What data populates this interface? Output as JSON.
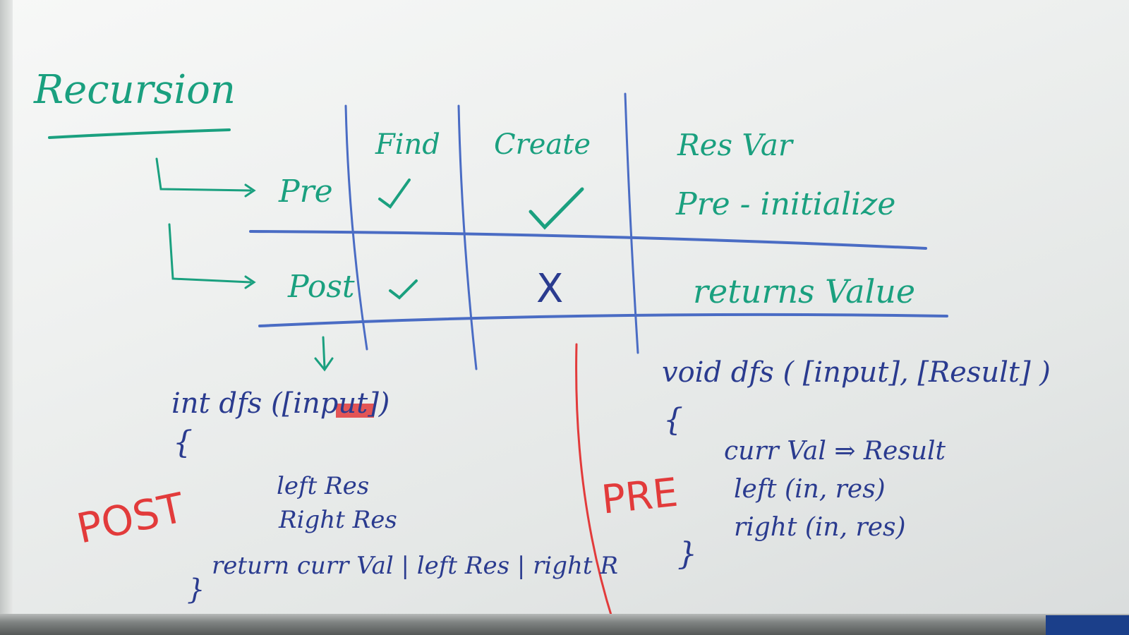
{
  "title": "Recursion",
  "table": {
    "columns": [
      "Find",
      "Create",
      "Res Var"
    ],
    "rows": [
      {
        "label": "Pre",
        "find": "✓",
        "create": "✓",
        "res_var": "Pre - initialize"
      },
      {
        "label": "Post",
        "find": "✓",
        "create": "X",
        "res_var": "returns Value"
      }
    ]
  },
  "post_code": {
    "tag": "POST",
    "signature": "int dfs ([input])",
    "open_brace": "{",
    "lines": [
      "left Res",
      "Right Res",
      "return curr Val | left Res | right R"
    ],
    "close_brace": "}"
  },
  "pre_code": {
    "tag": "PRE",
    "signature": "void dfs ( [input], [Result] )",
    "open_brace": "{",
    "lines": [
      "curr Val ⇒ Result",
      "left (in, res)",
      "right (in, res)"
    ],
    "close_brace": "}"
  },
  "colors": {
    "green": "#1aa07f",
    "blue": "#2a3b8f",
    "table_lines": "#4a6cc4",
    "red": "#e23b3b"
  }
}
